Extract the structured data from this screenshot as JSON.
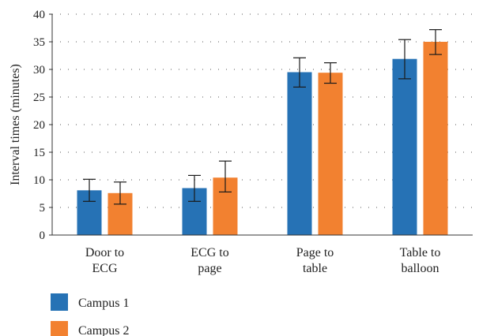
{
  "chart_data": {
    "type": "bar",
    "ylabel": "Interval times (minutes)",
    "ylim": [
      0,
      40
    ],
    "yticks": [
      0,
      5,
      10,
      15,
      20,
      25,
      30,
      35,
      40
    ],
    "grid": "dotted-horizontal",
    "legend_position": "bottom-left",
    "categories": [
      [
        "Door to",
        "ECG"
      ],
      [
        "ECG to",
        "page"
      ],
      [
        "Page to",
        "table"
      ],
      [
        "Table to",
        "balloon"
      ]
    ],
    "series": [
      {
        "name": "Campus 1",
        "color": "#2672b5",
        "values": [
          8.1,
          8.5,
          29.5,
          31.9
        ],
        "err_low": [
          6.1,
          6.1,
          26.8,
          28.3
        ],
        "err_high": [
          10.1,
          10.8,
          32.1,
          35.4
        ]
      },
      {
        "name": "Campus 2",
        "color": "#f28130",
        "values": [
          7.6,
          10.4,
          29.4,
          35.0
        ],
        "err_low": [
          5.6,
          7.8,
          27.5,
          32.7
        ],
        "err_high": [
          9.6,
          13.4,
          31.2,
          37.2
        ]
      }
    ]
  }
}
